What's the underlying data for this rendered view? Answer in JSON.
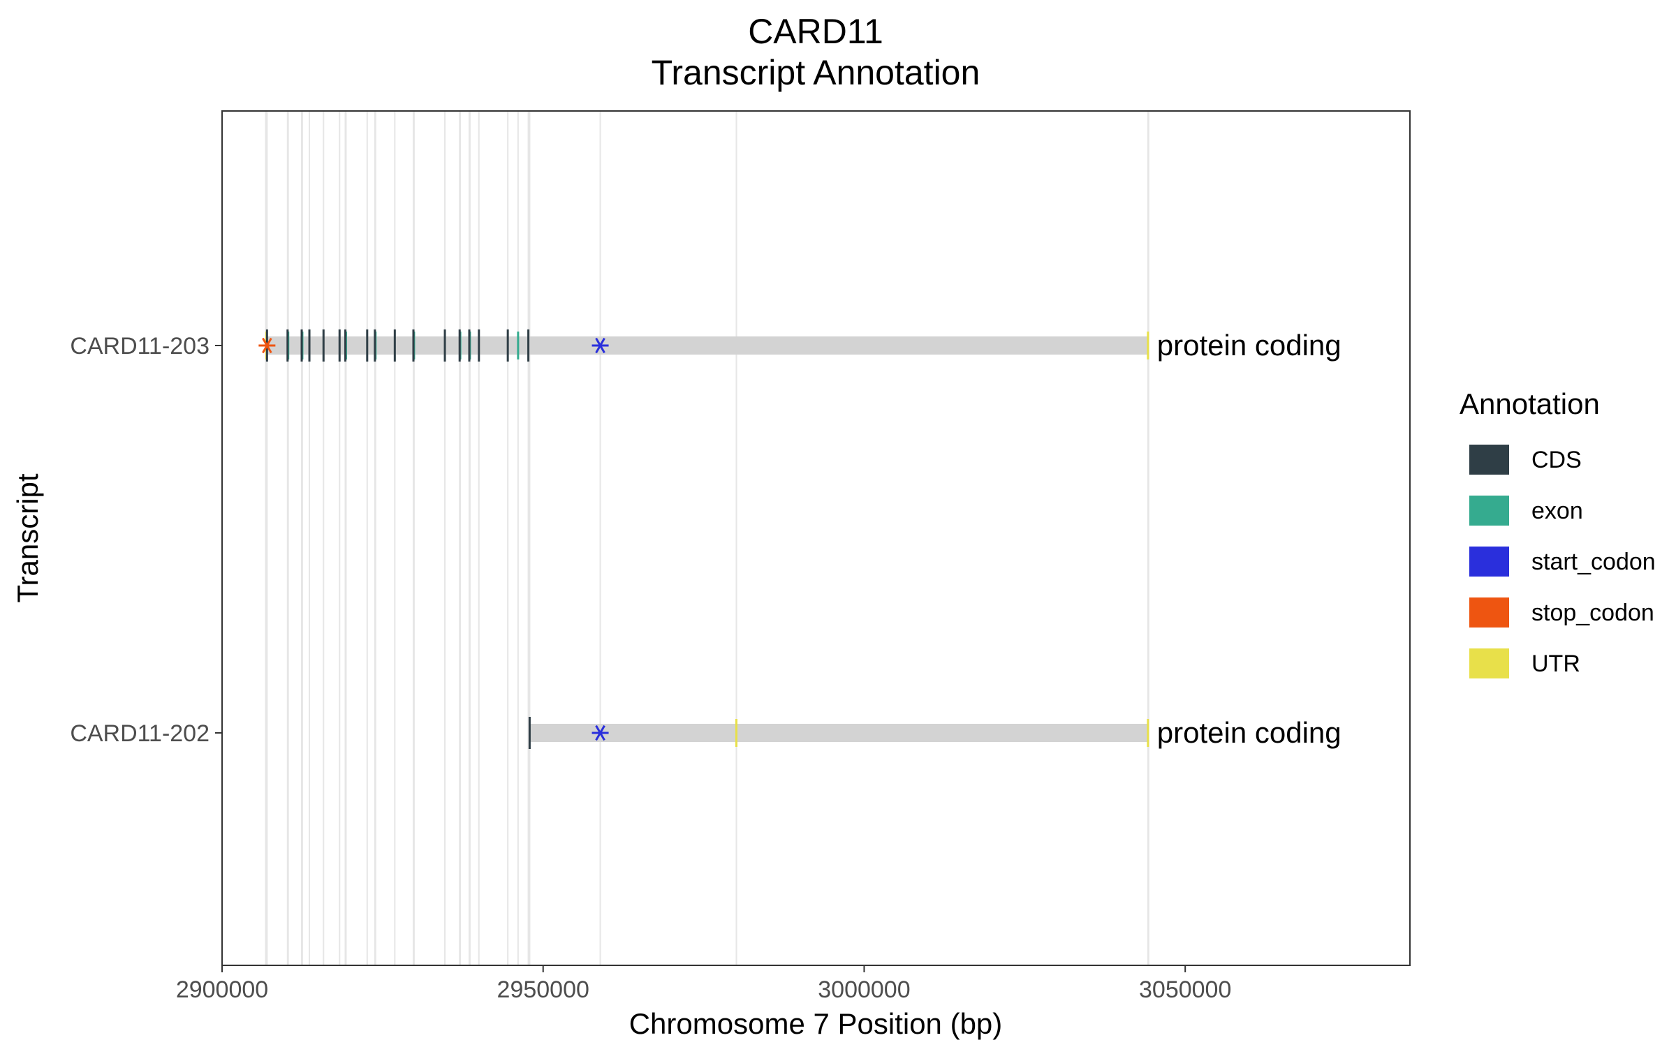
{
  "chart_data": {
    "type": "gantt",
    "title": "CARD11",
    "subtitle": "Transcript Annotation",
    "xlabel": "Chromosome 7 Position (bp)",
    "ylabel": "Transcript",
    "xlim": [
      2900000,
      3085000
    ],
    "x_ticks": [
      2900000,
      2950000,
      3000000,
      3050000
    ],
    "x_tick_labels": [
      "2900000",
      "2950000",
      "3000000",
      "3050000"
    ],
    "grid": true,
    "legend_position": "right",
    "legend": {
      "title": "Annotation",
      "items": [
        {
          "key": "CDS",
          "label": "CDS",
          "color": "#2f3e46"
        },
        {
          "key": "exon",
          "label": "exon",
          "color": "#35ab8f"
        },
        {
          "key": "start_codon",
          "label": "start_codon",
          "color": "#2a2fdc"
        },
        {
          "key": "stop_codon",
          "label": "stop_codon",
          "color": "#ee5511"
        },
        {
          "key": "UTR",
          "label": "UTR",
          "color": "#e8e04a"
        }
      ]
    },
    "transcript_color": "#d3d3d3",
    "transcripts": [
      {
        "name": "CARD11-203",
        "biotype": "protein coding",
        "start": 2906800,
        "end": 3044300,
        "cds": [
          2907000,
          2910200,
          2912400,
          2913600,
          2915800,
          2918300,
          2919200,
          2922600,
          2923800,
          2926900,
          2929800,
          2934700,
          2937000,
          2938500,
          2940000,
          2944500,
          2947700
        ],
        "exon": [
          2910300,
          2912500,
          2919300,
          2923900,
          2929900,
          2937100,
          2938600,
          2946100
        ],
        "utr": [
          2906900,
          3044200
        ],
        "start_codon": [
          2958900
        ],
        "stop_codon": [
          2907000
        ]
      },
      {
        "name": "CARD11-202",
        "biotype": "protein coding",
        "start": 2947800,
        "end": 3044300,
        "cds": [
          2947900
        ],
        "exon": [
          2980100
        ],
        "utr": [
          2980100,
          3044200
        ],
        "start_codon": [
          2958900
        ],
        "stop_codon": []
      }
    ]
  }
}
